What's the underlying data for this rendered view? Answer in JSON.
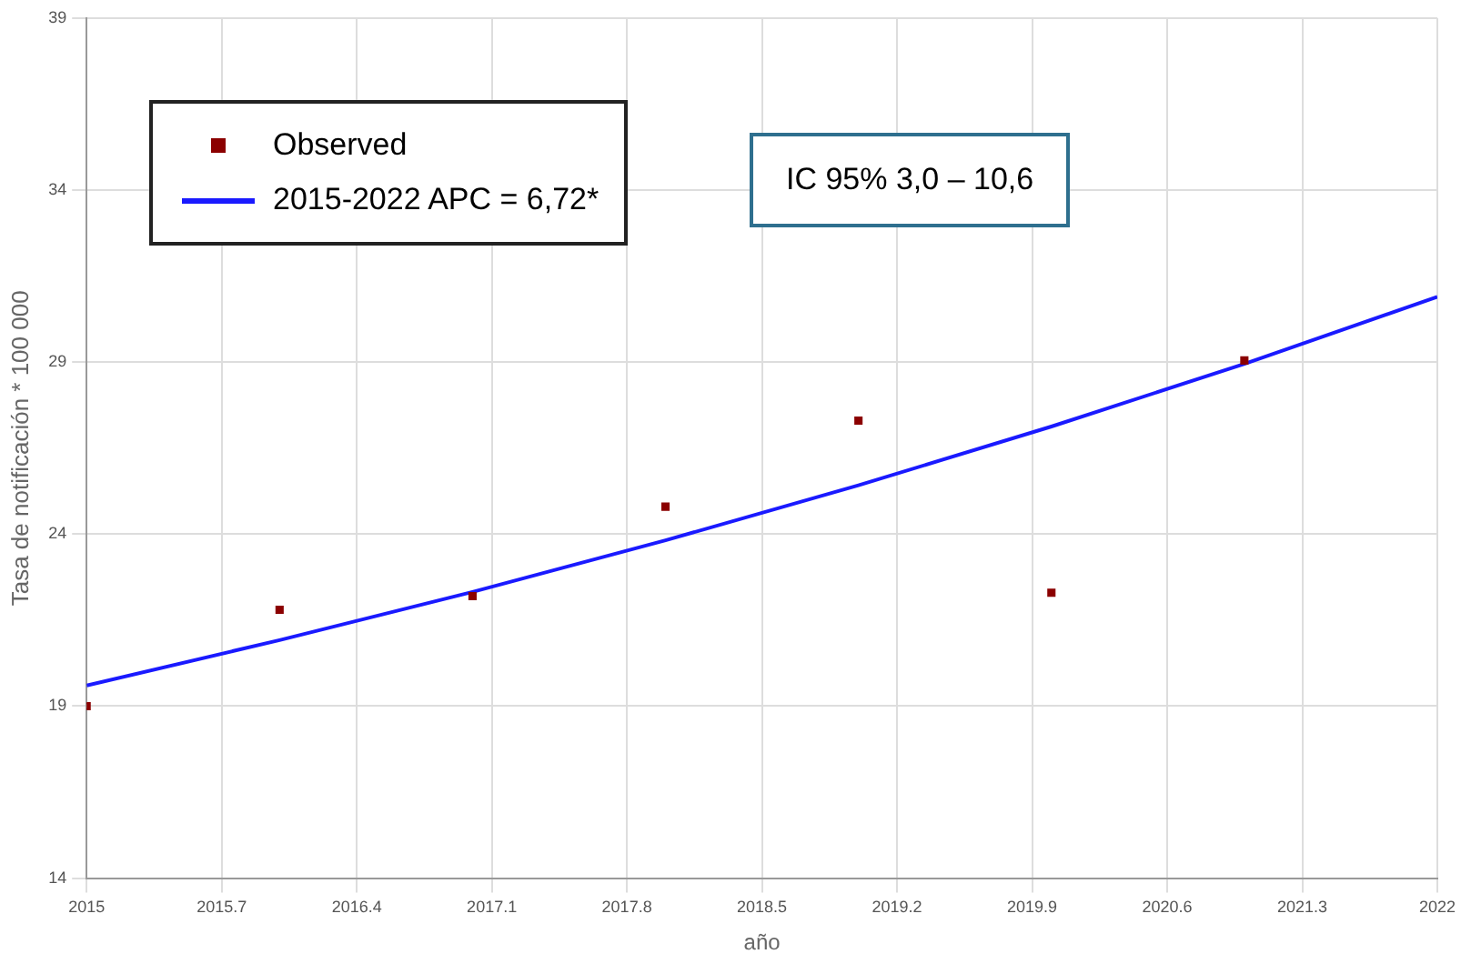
{
  "chart_data": {
    "type": "scatter",
    "xlabel": "año",
    "ylabel": "Tasa de notificación * 100 000",
    "annotations": [
      "IC 95% 3,0 – 10,6"
    ],
    "xlim": [
      2015,
      2022
    ],
    "xticks": [
      2015,
      2015.7,
      2016.4,
      2017.1,
      2017.8,
      2018.5,
      2019.2,
      2019.9,
      2020.6,
      2021.3,
      2022
    ],
    "ylim": [
      14,
      39
    ],
    "yticks": [
      14,
      19,
      24,
      29,
      34,
      39
    ],
    "grid": true,
    "legend": "top left",
    "series": [
      {
        "name": "Observed",
        "type": "scatter",
        "marker": "square",
        "color": "#8b0000",
        "x": [
          2015,
          2016,
          2017,
          2018,
          2019,
          2020,
          2021
        ],
        "values": [
          19.0,
          21.8,
          22.2,
          24.8,
          27.3,
          22.3,
          29.05
        ]
      },
      {
        "name": "2015-2022 APC  = 6,72*",
        "type": "line",
        "marker": "none",
        "color": "#1a1aff",
        "x": [
          2015,
          2016,
          2017,
          2018,
          2019,
          2020,
          2021,
          2022
        ],
        "values": [
          19.6,
          20.92,
          22.32,
          23.82,
          25.42,
          27.13,
          28.95,
          30.9
        ]
      }
    ]
  }
}
